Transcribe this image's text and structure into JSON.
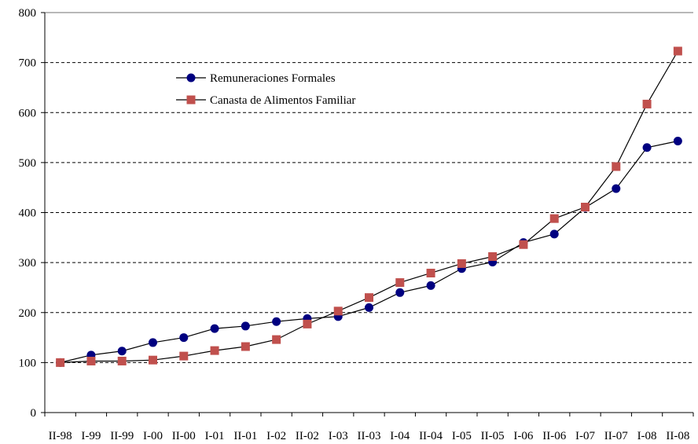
{
  "chart_data": {
    "type": "line",
    "title": "",
    "xlabel": "",
    "ylabel": "",
    "ylim": [
      0,
      800
    ],
    "yticks": [
      0,
      100,
      200,
      300,
      400,
      500,
      600,
      700,
      800
    ],
    "grid": "horizontal dashed",
    "legend_position": "top-left",
    "categories": [
      "II-98",
      "I-99",
      "II-99",
      "I-00",
      "II-00",
      "I-01",
      "II-01",
      "I-02",
      "II-02",
      "I-03",
      "II-03",
      "I-04",
      "II-04",
      "I-05",
      "II-05",
      "I-06",
      "II-06",
      "I-07",
      "II-07",
      "I-08",
      "II-08"
    ],
    "series": [
      {
        "name": "Remuneraciones Formales",
        "color": "#000080",
        "marker": "circle",
        "values": [
          100,
          115,
          123,
          140,
          150,
          168,
          173,
          182,
          188,
          192,
          210,
          240,
          254,
          288,
          301,
          340,
          357,
          410,
          448,
          530,
          543
        ]
      },
      {
        "name": "Canasta de Alimentos Familiar",
        "color": "#C0504D",
        "marker": "square",
        "values": [
          100,
          103,
          103,
          105,
          113,
          124,
          132,
          146,
          177,
          203,
          230,
          260,
          279,
          298,
          312,
          336,
          388,
          411,
          492,
          617,
          723
        ]
      }
    ]
  }
}
